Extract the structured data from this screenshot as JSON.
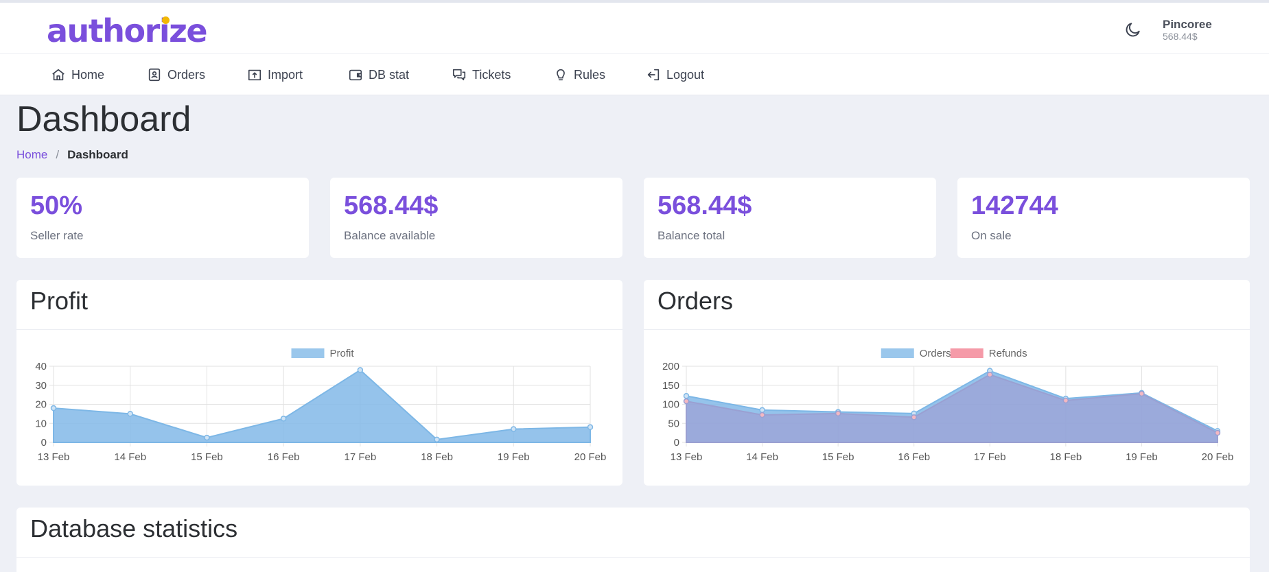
{
  "header": {
    "logo_text": "authorize",
    "user_name": "Pincoree",
    "user_balance": "568.44$",
    "theme_icon": "moon-icon"
  },
  "nav": {
    "items": [
      {
        "label": "Home",
        "icon": "home-icon"
      },
      {
        "label": "Orders",
        "icon": "orders-icon"
      },
      {
        "label": "Import",
        "icon": "import-icon"
      },
      {
        "label": "DB stat",
        "icon": "wallet-icon"
      },
      {
        "label": "Tickets",
        "icon": "chat-icon"
      },
      {
        "label": "Rules",
        "icon": "lightbulb-icon"
      },
      {
        "label": "Logout",
        "icon": "logout-icon"
      }
    ]
  },
  "page": {
    "title": "Dashboard",
    "breadcrumb": {
      "home": "Home",
      "separator": "/",
      "current": "Dashboard"
    }
  },
  "stats": [
    {
      "value": "50%",
      "label": "Seller rate"
    },
    {
      "value": "568.44$",
      "label": "Balance available"
    },
    {
      "value": "568.44$",
      "label": "Balance total"
    },
    {
      "value": "142744",
      "label": "On sale"
    }
  ],
  "panels": {
    "profit_title": "Profit",
    "orders_title": "Orders",
    "db_title": "Database statistics"
  },
  "colors": {
    "accent": "#7a4fdc",
    "profit_fill": "#9ac7ec",
    "refunds_fill": "#f59aa8"
  },
  "chart_data": [
    {
      "type": "area",
      "title": "Profit",
      "categories": [
        "13 Feb",
        "14 Feb",
        "15 Feb",
        "16 Feb",
        "17 Feb",
        "18 Feb",
        "19 Feb",
        "20 Feb"
      ],
      "series": [
        {
          "name": "Profit",
          "values": [
            18,
            15,
            2.5,
            12.5,
            38,
            1.5,
            7,
            8
          ]
        }
      ],
      "ylim": [
        0,
        40
      ],
      "yticks": [
        0,
        10,
        20,
        30,
        40
      ],
      "grid": true,
      "legend": "top-center"
    },
    {
      "type": "area",
      "title": "Orders",
      "categories": [
        "13 Feb",
        "14 Feb",
        "15 Feb",
        "16 Feb",
        "17 Feb",
        "18 Feb",
        "19 Feb",
        "20 Feb"
      ],
      "series": [
        {
          "name": "Orders",
          "values": [
            122,
            85,
            80,
            76,
            188,
            115,
            130,
            30
          ]
        },
        {
          "name": "Refunds",
          "values": [
            108,
            72,
            76,
            66,
            178,
            110,
            128,
            25
          ]
        }
      ],
      "ylim": [
        0,
        200
      ],
      "yticks": [
        0,
        50,
        100,
        150,
        200
      ],
      "grid": true,
      "legend": "top-center"
    }
  ]
}
